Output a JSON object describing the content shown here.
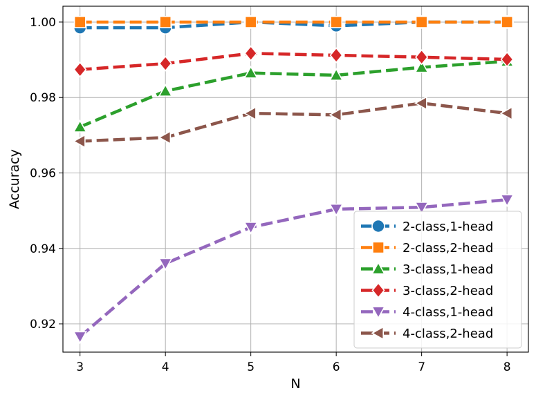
{
  "chart_data": {
    "type": "line",
    "title": "",
    "xlabel": "N",
    "ylabel": "Accuracy",
    "x": [
      3,
      4,
      5,
      6,
      7,
      8
    ],
    "xlim": [
      2.8,
      8.25
    ],
    "ylim": [
      0.9125,
      1.0042
    ],
    "yticks": [
      0.92,
      0.94,
      0.96,
      0.98,
      1.0
    ],
    "ytick_labels": [
      "0.92",
      "0.94",
      "0.96",
      "0.98",
      "1.00"
    ],
    "grid": true,
    "legend_position": "lower-right",
    "series": [
      {
        "name": "2-class,1-head",
        "color": "#1f77b4",
        "marker": "circle",
        "values": [
          0.9985,
          0.9985,
          1.0,
          0.999,
          1.0,
          1.0
        ]
      },
      {
        "name": "2-class,2-head",
        "color": "#ff7f0e",
        "marker": "square",
        "values": [
          1.0,
          1.0,
          1.0,
          1.0,
          1.0,
          1.0
        ]
      },
      {
        "name": "3-class,1-head",
        "color": "#2ca02c",
        "marker": "triangle-up",
        "values": [
          0.9722,
          0.9817,
          0.9865,
          0.9859,
          0.988,
          0.9896
        ]
      },
      {
        "name": "3-class,2-head",
        "color": "#d62728",
        "marker": "diamond",
        "values": [
          0.9874,
          0.989,
          0.9917,
          0.9912,
          0.9907,
          0.9901
        ]
      },
      {
        "name": "4-class,1-head",
        "color": "#9467bd",
        "marker": "triangle-down",
        "values": [
          0.9166,
          0.936,
          0.9456,
          0.9504,
          0.9509,
          0.9529
        ]
      },
      {
        "name": "4-class,2-head",
        "color": "#8c564b",
        "marker": "triangle-left",
        "values": [
          0.9684,
          0.9694,
          0.9758,
          0.9754,
          0.9785,
          0.9758
        ]
      }
    ]
  }
}
